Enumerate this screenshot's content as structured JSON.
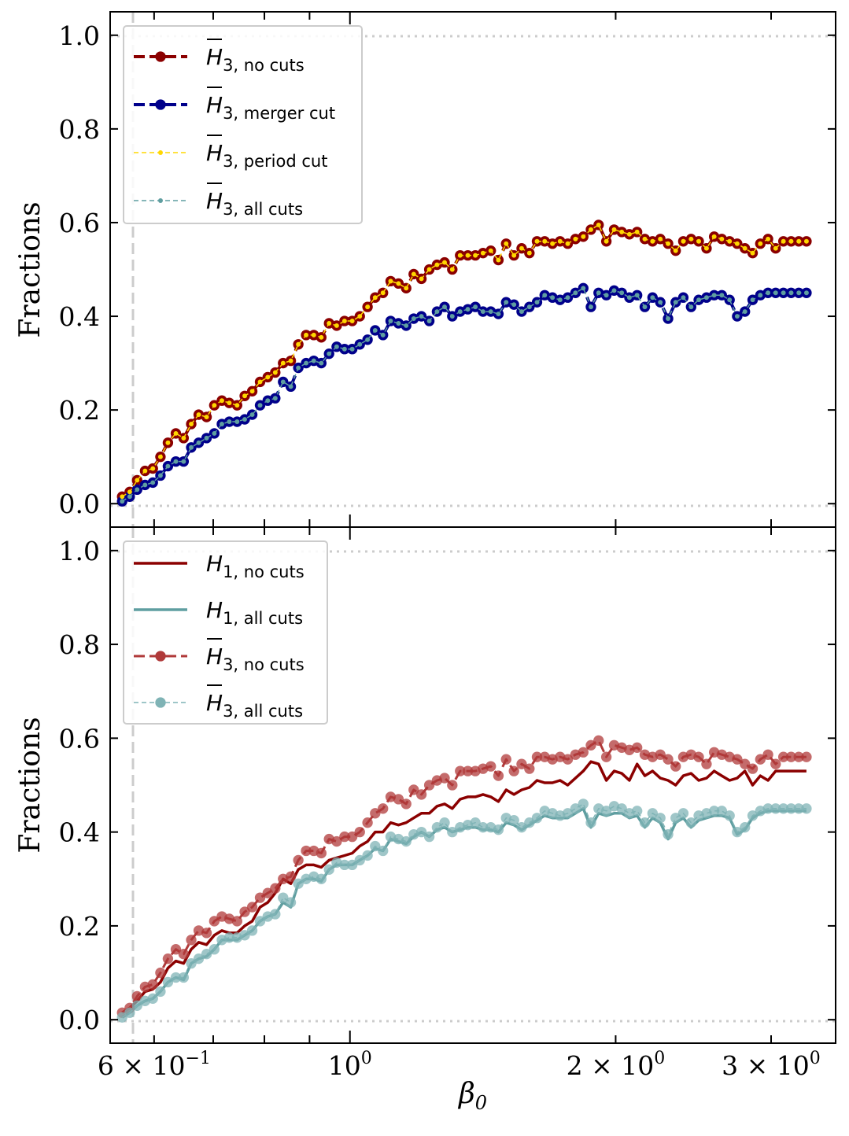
{
  "chart_data": [
    {
      "type": "line",
      "panel": "top",
      "title": "",
      "xlabel": "β0",
      "ylabel": "Fractions",
      "xscale": "log",
      "xlim": [
        0.535,
        3.55
      ],
      "ylim": [
        -0.05,
        1.05
      ],
      "yticks": [
        "0.0",
        "0.2",
        "0.4",
        "0.6",
        "0.8",
        "1.0"
      ],
      "reference_lines": {
        "horizontal": [
          0.0,
          1.0
        ],
        "vertical": [
          0.546
        ]
      },
      "legend_position": "top-left",
      "series": [
        {
          "name": "H̄3, no cuts",
          "label_main": "H",
          "label_sub": "3, no cuts",
          "overline": true,
          "color": "#8b0000",
          "style": "dashed",
          "marker_size": 9,
          "width": 4,
          "key": "no_cuts"
        },
        {
          "name": "H̄3, merger cut",
          "label_main": "H",
          "label_sub": "3, merger cut",
          "overline": true,
          "color": "#00008b",
          "style": "dashed",
          "marker_size": 9,
          "width": 4,
          "key": "all_cuts"
        },
        {
          "name": "H̄3, period cut",
          "label_main": "H",
          "label_sub": "3, period cut",
          "overline": true,
          "color": "#ffd700",
          "style": "dashed",
          "marker_size": 4,
          "width": 1.5,
          "key": "no_cuts"
        },
        {
          "name": "H̄3, all cuts",
          "label_main": "H",
          "label_sub": "3, all cuts",
          "overline": true,
          "color": "#5f9ea0",
          "style": "dashed",
          "marker_size": 4,
          "width": 1.5,
          "key": "all_cuts"
        }
      ]
    },
    {
      "type": "line",
      "panel": "bottom",
      "title": "",
      "xlabel": "β0",
      "ylabel": "Fractions",
      "xscale": "log",
      "xlim": [
        0.535,
        3.55
      ],
      "ylim": [
        -0.05,
        1.05
      ],
      "xticks": [
        {
          "value": 0.6,
          "label_base": "6 × 10",
          "label_exp": "−1"
        },
        {
          "value": 1.0,
          "label_base": "10",
          "label_exp": "0"
        },
        {
          "value": 2.0,
          "label_base": "2 × 10",
          "label_exp": "0"
        },
        {
          "value": 3.0,
          "label_base": "3 × 10",
          "label_exp": "0"
        }
      ],
      "yticks": [
        "0.0",
        "0.2",
        "0.4",
        "0.6",
        "0.8",
        "1.0"
      ],
      "reference_lines": {
        "horizontal": [
          0.0,
          1.0
        ],
        "vertical": [
          0.546
        ]
      },
      "legend_position": "top-left",
      "series": [
        {
          "name": "H1, no cuts",
          "label_main": "H",
          "label_sub": "1, no cuts",
          "overline": false,
          "color": "#8b0000",
          "style": "solid",
          "width": 3.5,
          "key": "h1_no_cuts"
        },
        {
          "name": "H1, all cuts",
          "label_main": "H",
          "label_sub": "1, all cuts",
          "overline": false,
          "color": "#5f9ea0",
          "style": "solid",
          "width": 3.5,
          "key": "h1_all_cuts"
        },
        {
          "name": "H̄3, no cuts",
          "label_main": "H",
          "label_sub": "3, no cuts",
          "overline": true,
          "color": "#b03a3a",
          "style": "dashed",
          "marker_size": 9,
          "width": 3,
          "key": "no_cuts"
        },
        {
          "name": "H̄3, all cuts",
          "label_main": "H",
          "label_sub": "3, all cuts",
          "overline": true,
          "color": "#7fb3b5",
          "style": "dashed",
          "marker_size": 9,
          "width": 1.5,
          "key": "all_cuts"
        }
      ]
    }
  ],
  "series_values": {
    "x": [
      0.552,
      0.563,
      0.574,
      0.586,
      0.598,
      0.61,
      0.622,
      0.635,
      0.648,
      0.661,
      0.674,
      0.688,
      0.702,
      0.716,
      0.73,
      0.745,
      0.76,
      0.775,
      0.791,
      0.807,
      0.823,
      0.84,
      0.857,
      0.874,
      0.892,
      0.91,
      0.928,
      0.947,
      0.966,
      0.986,
      1.006,
      1.026,
      1.047,
      1.068,
      1.09,
      1.112,
      1.135,
      1.158,
      1.181,
      1.205,
      1.23,
      1.255,
      1.28,
      1.306,
      1.333,
      1.36,
      1.387,
      1.415,
      1.444,
      1.473,
      1.503,
      1.534,
      1.565,
      1.597,
      1.629,
      1.662,
      1.696,
      1.73,
      1.765,
      1.801,
      1.838,
      1.875,
      1.913,
      1.952,
      1.992,
      2.032,
      2.073,
      2.115,
      2.158,
      2.202,
      2.247,
      2.293,
      2.339,
      2.386,
      2.435,
      2.484,
      2.535,
      2.586,
      2.638,
      2.692,
      2.746,
      2.802,
      2.859,
      2.917,
      2.976,
      3.036,
      3.098,
      3.161,
      3.225,
      3.29
    ],
    "no_cuts": [
      0.015,
      0.025,
      0.05,
      0.07,
      0.075,
      0.1,
      0.13,
      0.15,
      0.14,
      0.17,
      0.19,
      0.185,
      0.21,
      0.22,
      0.215,
      0.21,
      0.23,
      0.24,
      0.26,
      0.27,
      0.28,
      0.3,
      0.305,
      0.34,
      0.36,
      0.36,
      0.355,
      0.385,
      0.38,
      0.39,
      0.39,
      0.4,
      0.42,
      0.44,
      0.45,
      0.475,
      0.47,
      0.46,
      0.49,
      0.48,
      0.5,
      0.51,
      0.515,
      0.5,
      0.53,
      0.53,
      0.53,
      0.535,
      0.54,
      0.52,
      0.555,
      0.53,
      0.545,
      0.535,
      0.56,
      0.56,
      0.555,
      0.56,
      0.555,
      0.565,
      0.57,
      0.585,
      0.595,
      0.56,
      0.585,
      0.58,
      0.575,
      0.58,
      0.565,
      0.56,
      0.565,
      0.555,
      0.54,
      0.56,
      0.565,
      0.56,
      0.545,
      0.57,
      0.565,
      0.56,
      0.555,
      0.545,
      0.535,
      0.555,
      0.565,
      0.545,
      0.56,
      0.56,
      0.56,
      0.56
    ],
    "all_cuts": [
      0.005,
      0.015,
      0.03,
      0.04,
      0.045,
      0.06,
      0.08,
      0.09,
      0.09,
      0.12,
      0.13,
      0.14,
      0.15,
      0.17,
      0.175,
      0.175,
      0.18,
      0.19,
      0.21,
      0.22,
      0.225,
      0.26,
      0.25,
      0.29,
      0.3,
      0.305,
      0.3,
      0.32,
      0.335,
      0.33,
      0.33,
      0.34,
      0.35,
      0.37,
      0.36,
      0.39,
      0.385,
      0.38,
      0.395,
      0.4,
      0.39,
      0.41,
      0.42,
      0.4,
      0.41,
      0.415,
      0.42,
      0.41,
      0.41,
      0.405,
      0.43,
      0.425,
      0.41,
      0.42,
      0.43,
      0.445,
      0.44,
      0.435,
      0.44,
      0.45,
      0.46,
      0.42,
      0.45,
      0.445,
      0.455,
      0.45,
      0.44,
      0.445,
      0.42,
      0.44,
      0.43,
      0.395,
      0.43,
      0.44,
      0.42,
      0.435,
      0.44,
      0.445,
      0.445,
      0.435,
      0.4,
      0.41,
      0.435,
      0.445,
      0.45,
      0.45,
      0.45,
      0.45,
      0.45,
      0.45
    ],
    "h1_no_cuts": [
      0.015,
      0.025,
      0.04,
      0.06,
      0.065,
      0.08,
      0.11,
      0.125,
      0.12,
      0.15,
      0.165,
      0.16,
      0.18,
      0.19,
      0.185,
      0.185,
      0.2,
      0.21,
      0.24,
      0.25,
      0.27,
      0.3,
      0.29,
      0.32,
      0.33,
      0.33,
      0.325,
      0.34,
      0.345,
      0.35,
      0.355,
      0.37,
      0.38,
      0.4,
      0.4,
      0.42,
      0.415,
      0.42,
      0.43,
      0.44,
      0.44,
      0.455,
      0.46,
      0.45,
      0.47,
      0.475,
      0.475,
      0.48,
      0.475,
      0.465,
      0.49,
      0.48,
      0.49,
      0.495,
      0.51,
      0.505,
      0.505,
      0.51,
      0.5,
      0.515,
      0.53,
      0.55,
      0.545,
      0.51,
      0.53,
      0.525,
      0.51,
      0.545,
      0.52,
      0.53,
      0.515,
      0.51,
      0.5,
      0.52,
      0.525,
      0.51,
      0.515,
      0.53,
      0.52,
      0.51,
      0.515,
      0.53,
      0.5,
      0.52,
      0.51,
      0.53,
      0.53,
      0.53,
      0.53,
      0.53
    ],
    "h1_all_cuts": [
      0.005,
      0.015,
      0.03,
      0.04,
      0.045,
      0.06,
      0.08,
      0.09,
      0.085,
      0.12,
      0.13,
      0.135,
      0.15,
      0.17,
      0.17,
      0.17,
      0.18,
      0.19,
      0.21,
      0.22,
      0.225,
      0.25,
      0.24,
      0.29,
      0.3,
      0.3,
      0.295,
      0.32,
      0.33,
      0.33,
      0.33,
      0.34,
      0.35,
      0.365,
      0.36,
      0.385,
      0.38,
      0.375,
      0.39,
      0.4,
      0.39,
      0.405,
      0.41,
      0.4,
      0.405,
      0.41,
      0.41,
      0.405,
      0.405,
      0.4,
      0.42,
      0.415,
      0.405,
      0.415,
      0.425,
      0.435,
      0.43,
      0.43,
      0.43,
      0.44,
      0.45,
      0.41,
      0.44,
      0.435,
      0.44,
      0.44,
      0.43,
      0.435,
      0.41,
      0.43,
      0.42,
      0.385,
      0.42,
      0.43,
      0.41,
      0.425,
      0.43,
      0.435,
      0.435,
      0.43,
      0.395,
      0.405,
      0.43,
      0.44,
      0.445,
      0.445,
      0.445,
      0.445,
      0.445,
      0.445
    ]
  }
}
